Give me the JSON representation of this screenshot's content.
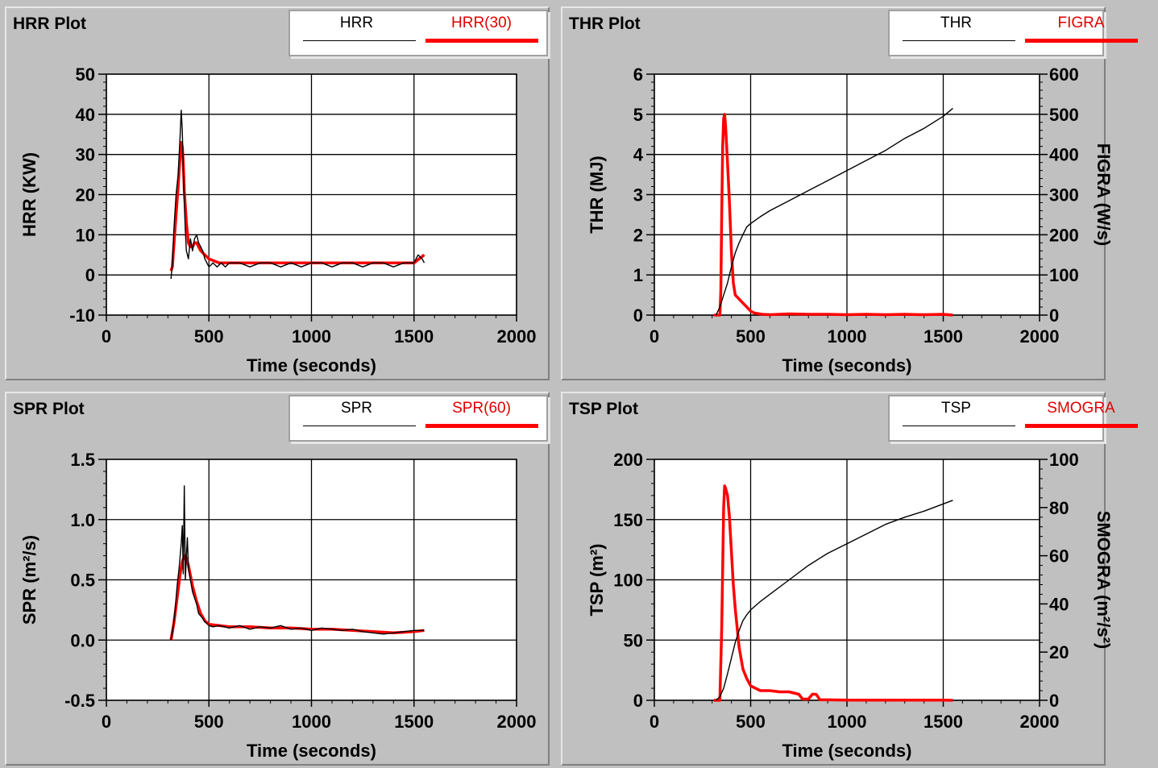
{
  "colors": {
    "background": "#c0c0c0",
    "plot_bg": "#ffffff",
    "series_primary": "#000000",
    "series_secondary": "#ff0000"
  },
  "chart_data": [
    {
      "type": "line",
      "title": "HRR Plot",
      "xlabel": "Time (seconds)",
      "ylabel": "HRR (KW)",
      "xlim": [
        0,
        2000
      ],
      "ylim": [
        -10,
        50
      ],
      "xticks": [
        0,
        500,
        1000,
        1500,
        2000
      ],
      "yticks": [
        -10,
        0,
        10,
        20,
        30,
        40,
        50
      ],
      "xtick_labels": [
        "0",
        "500",
        "1000",
        "1500",
        "2000"
      ],
      "ytick_labels": [
        "-10",
        "0",
        "10",
        "20",
        "30",
        "40",
        "50"
      ],
      "grid": true,
      "legend": "top-right",
      "series": [
        {
          "name": "HRR",
          "color": "#000000",
          "axis": "left",
          "x": [
            315,
            322,
            330,
            340,
            350,
            360,
            365,
            370,
            375,
            380,
            385,
            390,
            400,
            410,
            420,
            430,
            440,
            450,
            460,
            470,
            480,
            490,
            500,
            520,
            540,
            560,
            580,
            600,
            650,
            700,
            750,
            800,
            850,
            900,
            950,
            1000,
            1050,
            1100,
            1150,
            1200,
            1250,
            1300,
            1350,
            1400,
            1450,
            1500,
            1520,
            1540,
            1550
          ],
          "y": [
            -1,
            3,
            12,
            20,
            25,
            35,
            41,
            36,
            26,
            18,
            11,
            6,
            4,
            9,
            6,
            9,
            10,
            8,
            7,
            6,
            4,
            3,
            2,
            3,
            2,
            3,
            2,
            3,
            3,
            2,
            3,
            3,
            2,
            3,
            2,
            3,
            3,
            2,
            3,
            3,
            2,
            3,
            3,
            2,
            3,
            3,
            5,
            4,
            3
          ]
        },
        {
          "name": "HRR(30)",
          "color": "#ff0000",
          "axis": "left",
          "x": [
            315,
            322,
            330,
            340,
            350,
            360,
            365,
            370,
            375,
            380,
            390,
            400,
            410,
            420,
            430,
            440,
            450,
            460,
            480,
            500,
            550,
            600,
            700,
            800,
            900,
            1000,
            1100,
            1200,
            1300,
            1400,
            1500,
            1550
          ],
          "y": [
            1,
            2,
            8,
            15,
            22,
            30,
            33,
            32,
            28,
            21,
            13,
            8,
            7,
            7,
            8,
            8,
            7,
            6,
            5,
            4,
            3,
            3,
            3,
            3,
            3,
            3,
            3,
            3,
            3,
            3,
            3,
            5
          ]
        }
      ]
    },
    {
      "type": "line",
      "title": "THR Plot",
      "xlabel": "Time (seconds)",
      "ylabel": "THR (MJ)",
      "y2label": "FIGRA (W/s)",
      "xlim": [
        0,
        2000
      ],
      "ylim": [
        0,
        6
      ],
      "y2lim": [
        0,
        600
      ],
      "xticks": [
        0,
        500,
        1000,
        1500,
        2000
      ],
      "yticks": [
        0,
        1,
        2,
        3,
        4,
        5,
        6
      ],
      "y2ticks": [
        0,
        100,
        200,
        300,
        400,
        500,
        600
      ],
      "xtick_labels": [
        "0",
        "500",
        "1000",
        "1500",
        "2000"
      ],
      "ytick_labels": [
        "0",
        "1",
        "2",
        "3",
        "4",
        "5",
        "6"
      ],
      "y2tick_labels": [
        "0",
        "100",
        "200",
        "300",
        "400",
        "500",
        "600"
      ],
      "grid": true,
      "legend": "top-right",
      "series": [
        {
          "name": "THR",
          "color": "#000000",
          "axis": "left",
          "x": [
            320,
            340,
            360,
            380,
            400,
            420,
            440,
            460,
            480,
            500,
            550,
            600,
            700,
            800,
            900,
            1000,
            1100,
            1200,
            1300,
            1400,
            1500,
            1550
          ],
          "y": [
            0,
            0.2,
            0.5,
            0.8,
            1.2,
            1.55,
            1.8,
            2.0,
            2.2,
            2.28,
            2.45,
            2.6,
            2.85,
            3.1,
            3.35,
            3.6,
            3.85,
            4.1,
            4.4,
            4.65,
            4.95,
            5.15
          ]
        },
        {
          "name": "FIGRA",
          "color": "#ff0000",
          "axis": "right",
          "x": [
            310,
            340,
            345,
            350,
            355,
            360,
            365,
            370,
            380,
            390,
            400,
            410,
            420,
            440,
            460,
            480,
            500,
            520,
            560,
            600,
            700,
            800,
            900,
            1000,
            1100,
            1200,
            1300,
            1400,
            1500,
            1550
          ],
          "y": [
            0,
            0,
            60,
            250,
            420,
            490,
            500,
            470,
            380,
            280,
            160,
            80,
            50,
            40,
            30,
            20,
            10,
            5,
            2,
            1,
            3,
            2,
            2,
            1,
            2,
            1,
            2,
            1,
            2,
            0
          ]
        }
      ]
    },
    {
      "type": "line",
      "title": "SPR Plot",
      "xlabel": "Time (seconds)",
      "ylabel": "SPR (m²/s)",
      "xlim": [
        0,
        2000
      ],
      "ylim": [
        -0.5,
        1.5
      ],
      "xticks": [
        0,
        500,
        1000,
        1500,
        2000
      ],
      "yticks": [
        -0.5,
        0,
        0.5,
        1,
        1.5
      ],
      "xtick_labels": [
        "0",
        "500",
        "1000",
        "1500",
        "2000"
      ],
      "ytick_labels": [
        "-0.5",
        "0.0",
        "0.5",
        "1.0",
        "1.5"
      ],
      "grid": true,
      "legend": "top-right",
      "series": [
        {
          "name": "SPR",
          "color": "#000000",
          "axis": "left",
          "x": [
            315,
            325,
            335,
            345,
            355,
            365,
            370,
            375,
            380,
            385,
            390,
            395,
            400,
            410,
            420,
            430,
            440,
            450,
            460,
            470,
            480,
            490,
            500,
            520,
            550,
            600,
            650,
            700,
            750,
            800,
            850,
            900,
            950,
            1000,
            1050,
            1100,
            1150,
            1200,
            1250,
            1300,
            1350,
            1400,
            1450,
            1500,
            1550
          ],
          "y": [
            0,
            0.1,
            0.25,
            0.45,
            0.6,
            0.8,
            0.95,
            0.55,
            1.28,
            0.5,
            0.7,
            0.85,
            0.6,
            0.5,
            0.4,
            0.35,
            0.3,
            0.22,
            0.2,
            0.18,
            0.15,
            0.14,
            0.12,
            0.11,
            0.12,
            0.1,
            0.12,
            0.09,
            0.11,
            0.1,
            0.12,
            0.09,
            0.1,
            0.08,
            0.1,
            0.09,
            0.08,
            0.09,
            0.07,
            0.06,
            0.05,
            0.06,
            0.07,
            0.08,
            0.08
          ]
        },
        {
          "name": "SPR(60)",
          "color": "#ff0000",
          "axis": "left",
          "x": [
            315,
            330,
            345,
            360,
            370,
            380,
            390,
            400,
            420,
            440,
            460,
            480,
            500,
            550,
            600,
            700,
            800,
            900,
            1000,
            1100,
            1200,
            1300,
            1400,
            1500,
            1550
          ],
          "y": [
            0,
            0.15,
            0.35,
            0.55,
            0.65,
            0.7,
            0.68,
            0.62,
            0.45,
            0.32,
            0.22,
            0.16,
            0.13,
            0.12,
            0.11,
            0.11,
            0.1,
            0.1,
            0.09,
            0.09,
            0.08,
            0.07,
            0.06,
            0.07,
            0.08
          ]
        }
      ]
    },
    {
      "type": "line",
      "title": "TSP Plot",
      "xlabel": "Time (seconds)",
      "ylabel": "TSP (m²)",
      "y2label": "SMOGRA (m²/s²)",
      "xlim": [
        0,
        2000
      ],
      "ylim": [
        0,
        200
      ],
      "y2lim": [
        0,
        100
      ],
      "xticks": [
        0,
        500,
        1000,
        1500,
        2000
      ],
      "yticks": [
        0,
        50,
        100,
        150,
        200
      ],
      "y2ticks": [
        0,
        20,
        40,
        60,
        80,
        100
      ],
      "xtick_labels": [
        "0",
        "500",
        "1000",
        "1500",
        "2000"
      ],
      "ytick_labels": [
        "0",
        "50",
        "100",
        "150",
        "200"
      ],
      "y2tick_labels": [
        "0",
        "20",
        "40",
        "60",
        "80",
        "100"
      ],
      "grid": true,
      "legend": "top-right",
      "series": [
        {
          "name": "TSP",
          "color": "#000000",
          "axis": "left",
          "x": [
            320,
            340,
            360,
            380,
            400,
            420,
            440,
            460,
            480,
            500,
            550,
            600,
            700,
            800,
            900,
            1000,
            1100,
            1200,
            1300,
            1400,
            1500,
            1550
          ],
          "y": [
            0,
            3,
            10,
            22,
            35,
            48,
            58,
            66,
            71,
            75,
            82,
            88,
            100,
            112,
            122,
            130,
            138,
            146,
            152,
            157,
            163,
            166
          ]
        },
        {
          "name": "SMOGRA",
          "color": "#ff0000",
          "axis": "right",
          "x": [
            310,
            340,
            350,
            360,
            365,
            370,
            380,
            390,
            400,
            410,
            420,
            440,
            460,
            480,
            500,
            550,
            600,
            650,
            700,
            750,
            770,
            800,
            820,
            840,
            860,
            900,
            1000,
            1100,
            1200,
            1300,
            1400,
            1500,
            1550
          ],
          "y": [
            0,
            0,
            30,
            80,
            89,
            88,
            85,
            76,
            62,
            48,
            38,
            22,
            13,
            9,
            6,
            4,
            4,
            3.5,
            3.5,
            2.5,
            0.5,
            0.5,
            2.5,
            2.5,
            0.2,
            0.2,
            0.1,
            0.1,
            0.1,
            0.1,
            0.1,
            0.1,
            0
          ]
        }
      ]
    }
  ]
}
